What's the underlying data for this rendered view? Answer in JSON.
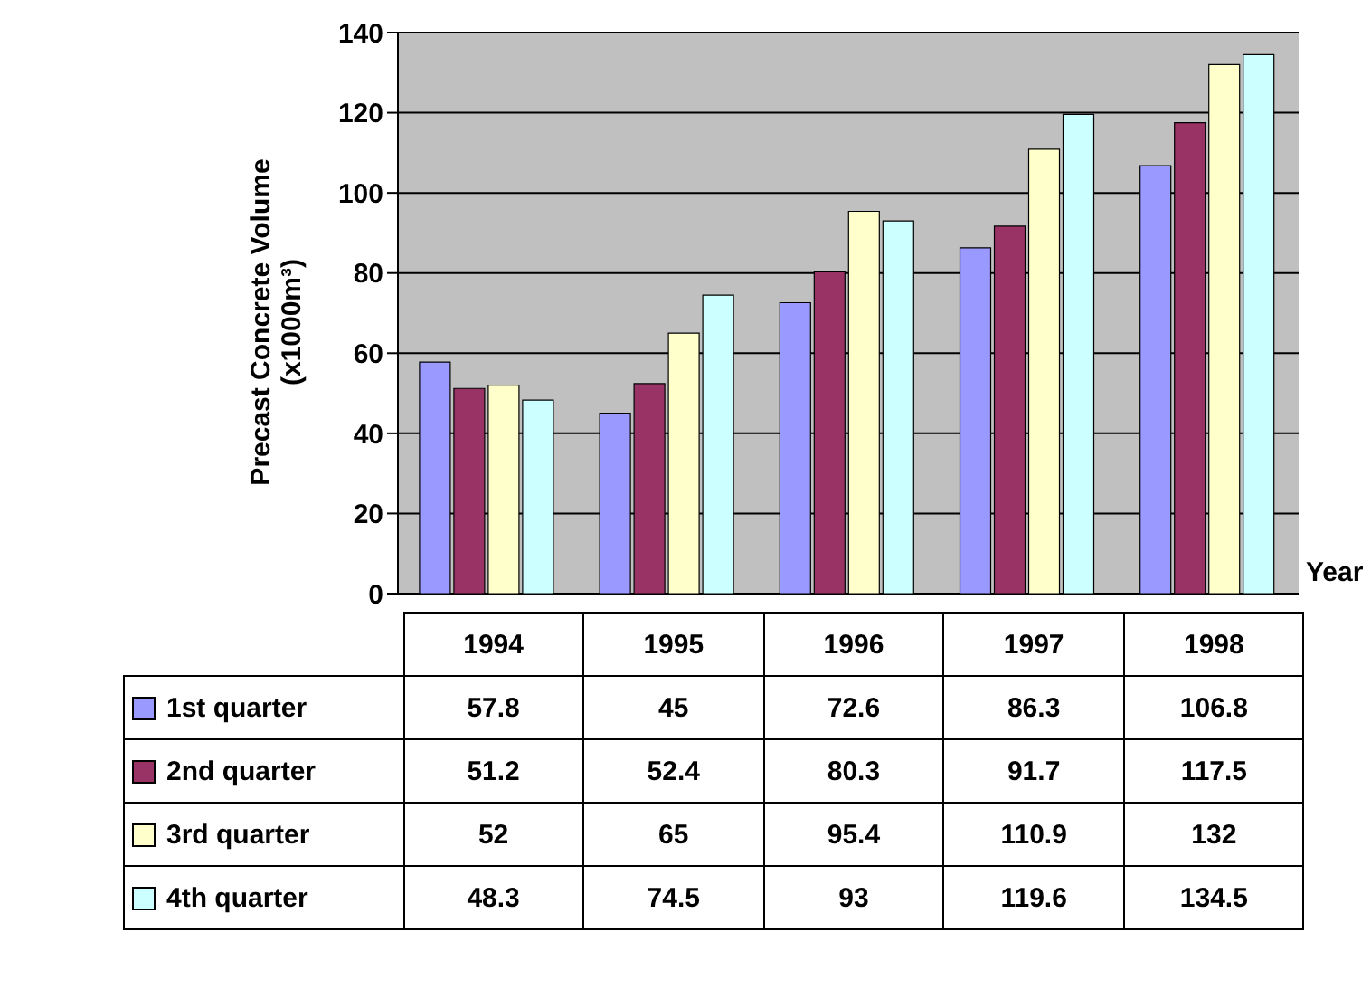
{
  "chart_data": {
    "type": "bar",
    "ylabel": "Precast Concrete Volume (x1000m³)",
    "xlabel": "Year",
    "categories": [
      "1994",
      "1995",
      "1996",
      "1997",
      "1998"
    ],
    "series": [
      {
        "name": "1st quarter",
        "color": "#9999ff",
        "values": [
          57.8,
          45,
          72.6,
          86.3,
          106.8
        ]
      },
      {
        "name": "2nd quarter",
        "color": "#993366",
        "values": [
          51.2,
          52.4,
          80.3,
          91.7,
          117.5
        ]
      },
      {
        "name": "3rd quarter",
        "color": "#ffffcc",
        "values": [
          52,
          65,
          95.4,
          110.9,
          132
        ]
      },
      {
        "name": "4th quarter",
        "color": "#ccffff",
        "values": [
          48.3,
          74.5,
          93,
          119.6,
          134.5
        ]
      }
    ],
    "ylim": [
      0,
      140
    ],
    "yticks": [
      0,
      20,
      40,
      60,
      80,
      100,
      120,
      140
    ],
    "grid": "y",
    "legend": "bottom left",
    "data_labels": true
  }
}
